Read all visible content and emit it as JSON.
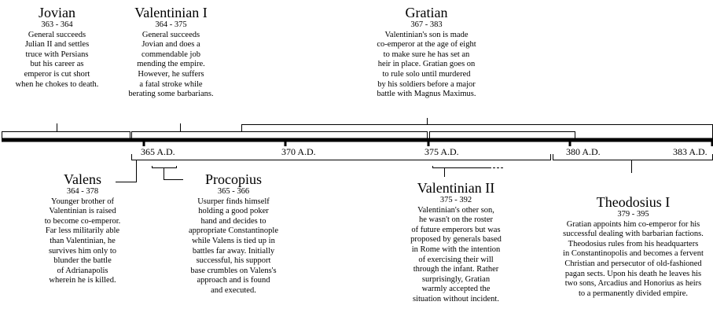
{
  "axis": {
    "ticks": [
      "365 A.D.",
      "370 A.D.",
      "375 A.D.",
      "380 A.D.",
      "383 A.D."
    ]
  },
  "rulers": [
    {
      "name": "Jovian",
      "years": "363 - 364",
      "desc": [
        "General succeeds",
        "Julian II and settles",
        "truce with Persians",
        "but his career as",
        "emperor is cut short",
        "when he chokes to death."
      ]
    },
    {
      "name": "Valentinian I",
      "years": "364 - 375",
      "desc": [
        "General succeeds",
        "Jovian and does a",
        "commendable job",
        "mending the empire.",
        "However, he suffers",
        "a fatal stroke while",
        "berating some barbarians."
      ]
    },
    {
      "name": "Gratian",
      "years": "367 - 383",
      "desc": [
        "Valentinian's son is made",
        "co-emperor at the age of eight",
        "to make sure he has set an",
        "heir in place. Gratian goes on",
        "to rule solo until murdered",
        "by his soldiers before a major",
        "battle with Magnus Maximus."
      ]
    },
    {
      "name": "Valens",
      "years": "364 - 378",
      "desc": [
        "Younger brother of",
        "Valentinian is raised",
        "to become co-emperor.",
        "Far less militarily able",
        "than Valentinian, he",
        "survives him only to",
        "blunder the battle",
        "of Adrianapolis",
        "wherein he is killed."
      ]
    },
    {
      "name": "Procopius",
      "years": "365 - 366",
      "desc": [
        "Usurper finds himself",
        "holding a good poker",
        "hand and decides to",
        "appropriate Constantinople",
        "while Valens is tied up in",
        "battles far away. Initially",
        "successful, his support",
        "base crumbles on Valens's",
        "approach and is found",
        "and executed."
      ]
    },
    {
      "name": "Valentinian II",
      "years": "375 - 392",
      "desc": [
        "Valentinian's other son,",
        "he wasn't on the roster",
        "of future emperors but was",
        "proposed by generals based",
        "in Rome with the intention",
        "of exercising their will",
        "through the infant. Rather",
        "surprisingly, Gratian",
        "warmly accepted the",
        "situation without incident."
      ]
    },
    {
      "name": "Theodosius I",
      "years": "379 - 395",
      "desc": [
        "Gratian appoints him co-emperor for his",
        "successful dealing with barbarian factions.",
        "Theodosius rules from his headquarters",
        "in Constantinopolis and becomes a fervent",
        "Christian and persecutor of old-fashioned",
        "pagan sects. Upon his death he leaves his",
        "two sons, Arcadius and Honorius as heirs",
        "to a permanently divided empire."
      ]
    }
  ]
}
